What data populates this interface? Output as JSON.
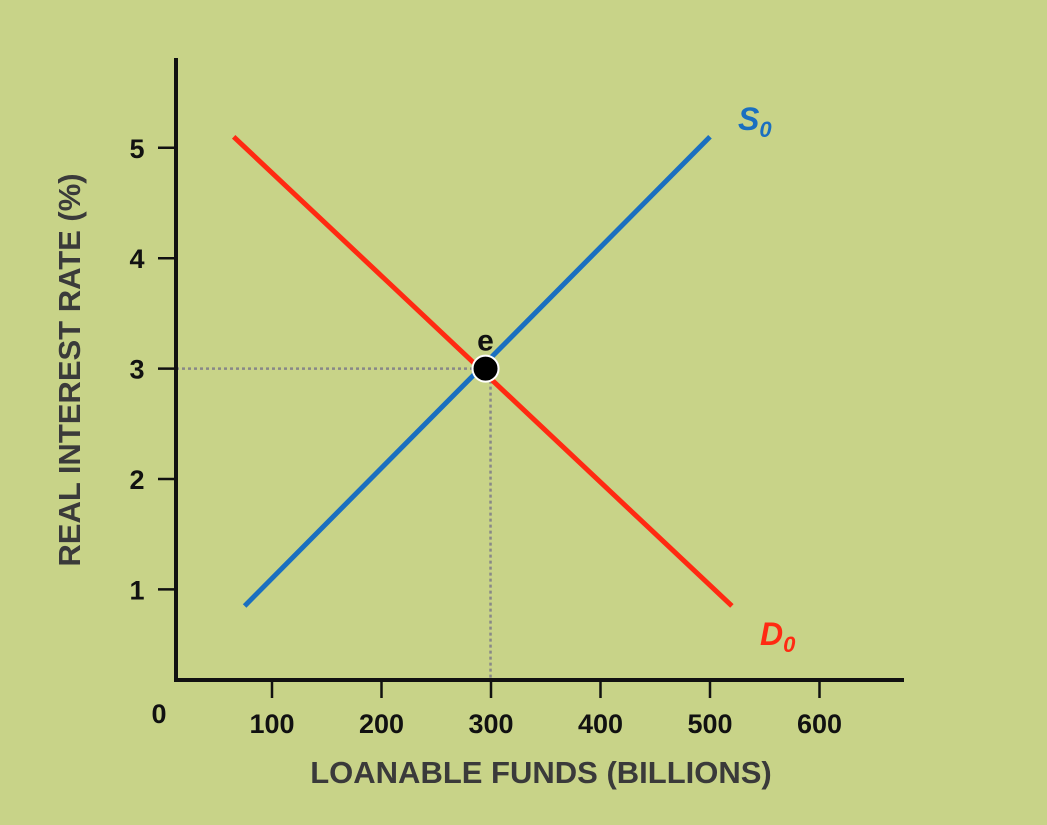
{
  "chart_data": {
    "type": "line",
    "xlabel": "LOANABLE FUNDS (BILLIONS)",
    "ylabel": "REAL INTEREST RATE  (%)",
    "origin_label": "0",
    "x_ticks": [
      100,
      200,
      300,
      400,
      500,
      600
    ],
    "y_ticks": [
      1,
      2,
      3,
      4,
      5
    ],
    "xlim": [
      0,
      660
    ],
    "ylim": [
      0,
      5.8
    ],
    "grid": false,
    "legend": "none",
    "series": [
      {
        "name": "S",
        "subscript": "0",
        "color": "#1a6fc0",
        "points": [
          [
            75,
            0.85
          ],
          [
            500,
            5.1
          ]
        ]
      },
      {
        "name": "D",
        "subscript": "0",
        "color": "#ff2a12",
        "points": [
          [
            65,
            5.1
          ],
          [
            520,
            0.85
          ]
        ]
      }
    ],
    "equilibrium": {
      "label": "e",
      "x": 295,
      "y": 3
    },
    "axis_color": "#111111",
    "guide_color": "#888888"
  }
}
